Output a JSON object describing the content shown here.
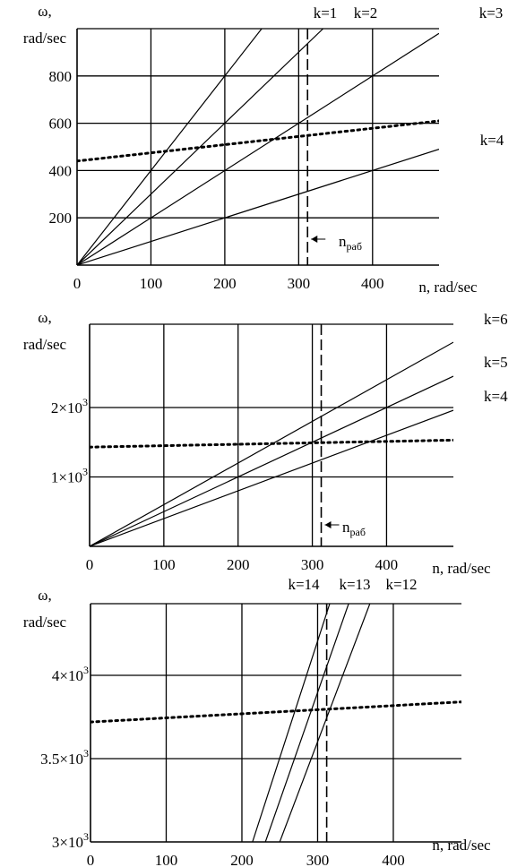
{
  "chart_data": [
    {
      "type": "line",
      "ylabel_line1": "ω,",
      "ylabel_line2": "rad/sec",
      "xlabel": "n, rad/sec",
      "xlim": [
        0,
        490
      ],
      "ylim": [
        0,
        1000
      ],
      "grid": true,
      "x_ticks": [
        {
          "value": 0,
          "label": "0"
        },
        {
          "value": 100,
          "label": "100"
        },
        {
          "value": 200,
          "label": "200"
        },
        {
          "value": 300,
          "label": "300"
        },
        {
          "value": 400,
          "label": "400"
        }
      ],
      "y_ticks": [
        {
          "value": 200,
          "label": "200"
        },
        {
          "value": 400,
          "label": "400"
        },
        {
          "value": 600,
          "label": "600"
        },
        {
          "value": 800,
          "label": "800"
        }
      ],
      "series": [
        {
          "name": "k=1",
          "x": [
            0,
            490
          ],
          "y": [
            0,
            490
          ]
        },
        {
          "name": "k=2",
          "x": [
            0,
            490
          ],
          "y": [
            0,
            980
          ]
        },
        {
          "name": "k=3",
          "x": [
            0,
            333
          ],
          "y": [
            0,
            1000
          ]
        },
        {
          "name": "k=4",
          "x": [
            0,
            250
          ],
          "y": [
            0,
            1000
          ]
        }
      ],
      "dotted_series": {
        "x": [
          0,
          490
        ],
        "y": [
          440,
          610
        ]
      },
      "marker": {
        "x": 312,
        "label": "n",
        "subscript": "раб",
        "label_y": 100
      }
    },
    {
      "type": "line",
      "ylabel_line1": "ω,",
      "ylabel_line2": "rad/sec",
      "xlabel": "n, rad/sec",
      "xlim": [
        0,
        490
      ],
      "ylim": [
        0,
        3200
      ],
      "grid": true,
      "x_ticks": [
        {
          "value": 0,
          "label": "0"
        },
        {
          "value": 100,
          "label": "100"
        },
        {
          "value": 200,
          "label": "200"
        },
        {
          "value": 300,
          "label": "300"
        },
        {
          "value": 400,
          "label": "400"
        }
      ],
      "y_ticks": [
        {
          "value": 1000,
          "label": "1×10",
          "exp": "3"
        },
        {
          "value": 2000,
          "label": "2×10",
          "exp": "3"
        }
      ],
      "series": [
        {
          "name": "k=4",
          "x": [
            0,
            490
          ],
          "y": [
            0,
            1960
          ]
        },
        {
          "name": "k=5",
          "x": [
            0,
            490
          ],
          "y": [
            0,
            2450
          ]
        },
        {
          "name": "k=6",
          "x": [
            0,
            490
          ],
          "y": [
            0,
            2940
          ]
        }
      ],
      "dotted_series": {
        "x": [
          0,
          490
        ],
        "y": [
          1430,
          1530
        ]
      },
      "marker": {
        "x": 312,
        "label": "n",
        "subscript": "раб",
        "label_y": 250
      }
    },
    {
      "type": "line",
      "ylabel_line1": "ω,",
      "ylabel_line2": "rad/sec",
      "xlabel": "n, rad/sec",
      "xlim": [
        0,
        490
      ],
      "ylim": [
        3000,
        4430
      ],
      "grid": true,
      "x_ticks": [
        {
          "value": 0,
          "label": "0"
        },
        {
          "value": 100,
          "label": "100"
        },
        {
          "value": 200,
          "label": "200"
        },
        {
          "value": 300,
          "label": "300"
        },
        {
          "value": 400,
          "label": "400"
        }
      ],
      "y_ticks": [
        {
          "value": 3000,
          "label": "3×10",
          "exp": "3"
        },
        {
          "value": 3500,
          "label": "3.5×10",
          "exp": "3"
        },
        {
          "value": 4000,
          "label": "4×10",
          "exp": "3"
        }
      ],
      "series": [
        {
          "name": "k=12",
          "x": [
            250,
            369
          ],
          "y": [
            3000,
            4430
          ]
        },
        {
          "name": "k=13",
          "x": [
            231,
            341
          ],
          "y": [
            3000,
            4430
          ]
        },
        {
          "name": "k=14",
          "x": [
            214,
            316
          ],
          "y": [
            3000,
            4430
          ]
        }
      ],
      "dotted_series": {
        "x": [
          0,
          490
        ],
        "y": [
          3720,
          3840
        ]
      },
      "marker": {
        "x": 312
      }
    }
  ]
}
